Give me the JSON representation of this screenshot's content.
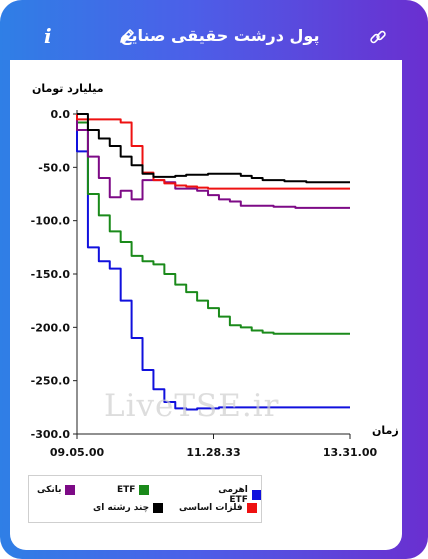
{
  "header": {
    "title": "پول درشت حقیقی صنایع",
    "info_icon": "i",
    "icons": [
      "info-icon",
      "pencil-icon",
      "link-icon"
    ]
  },
  "colors": {
    "gradient_start": "#2f7fe6",
    "gradient_end": "#6a2fd0",
    "etf_leveraged": "#1010dd",
    "etf": "#1a8a1a",
    "bank": "#7d0a86",
    "basic_metals": "#ee1111",
    "multi_sector": "#000000"
  },
  "watermark": "LiveTSE.ir",
  "chart_data": {
    "type": "line",
    "ylabel": "میلیارد تومان",
    "xlabel": "زمان",
    "ylim": [
      -300,
      0
    ],
    "yticks": [
      "0.0",
      "-50.0",
      "-100.0",
      "-150.0",
      "-200.0",
      "-250.0",
      "-300.0"
    ],
    "xticks": [
      "09.05.00",
      "11.28.33",
      "13.31.00"
    ],
    "x": [
      0,
      4,
      8,
      12,
      16,
      20,
      24,
      28,
      32,
      36,
      40,
      44,
      48,
      52,
      56,
      60,
      64,
      68,
      72,
      76,
      80,
      84,
      88,
      92,
      96,
      100
    ],
    "series": [
      {
        "name": "اهرمی ETF",
        "color": "#1010dd",
        "values": [
          -35,
          -125,
          -138,
          -145,
          -175,
          -210,
          -240,
          -258,
          -270,
          -276,
          -277,
          -276,
          -276,
          -275,
          -275,
          -275,
          -275,
          -275,
          -275,
          -275,
          -275,
          -275,
          -275,
          -275,
          -275,
          -275
        ]
      },
      {
        "name": "ETF",
        "color": "#1a8a1a",
        "values": [
          -8,
          -75,
          -95,
          -110,
          -120,
          -133,
          -138,
          -141,
          -150,
          -160,
          -167,
          -175,
          -182,
          -190,
          -198,
          -200,
          -203,
          -205,
          -206,
          -206,
          -206,
          -206,
          -206,
          -206,
          -206,
          -206
        ]
      },
      {
        "name": "بانکی",
        "color": "#7d0a86",
        "values": [
          -15,
          -40,
          -60,
          -78,
          -72,
          -80,
          -62,
          -62,
          -64,
          -70,
          -70,
          -72,
          -76,
          -80,
          -82,
          -86,
          -86,
          -86,
          -87,
          -87,
          -88,
          -88,
          -88,
          -88,
          -88,
          -88
        ]
      },
      {
        "name": "فلزات اساسی",
        "color": "#ee1111",
        "values": [
          -5,
          -5,
          -5,
          -5,
          -8,
          -30,
          -55,
          -62,
          -65,
          -67,
          -68,
          -69,
          -70,
          -70,
          -70,
          -70,
          -70,
          -70,
          -70,
          -70,
          -70,
          -70,
          -70,
          -70,
          -70,
          -70
        ]
      },
      {
        "name": "چند رشته ای",
        "color": "#000000",
        "values": [
          0,
          -15,
          -23,
          -30,
          -40,
          -48,
          -56,
          -59,
          -59,
          -58,
          -57,
          -57,
          -56,
          -56,
          -56,
          -58,
          -60,
          -62,
          -62,
          -63,
          -63,
          -64,
          -64,
          -64,
          -64,
          -64
        ]
      }
    ],
    "legend_position": "bottom-left",
    "grid": false
  },
  "legend": {
    "items": [
      {
        "label": "اهرمی ETF",
        "color": "#1010dd"
      },
      {
        "label": "ETF",
        "color": "#1a8a1a"
      },
      {
        "label": "بانکی",
        "color": "#7d0a86"
      },
      {
        "label": "فلزات اساسی",
        "color": "#ee1111"
      },
      {
        "label": "چند رشته ای",
        "color": "#000000"
      }
    ]
  }
}
